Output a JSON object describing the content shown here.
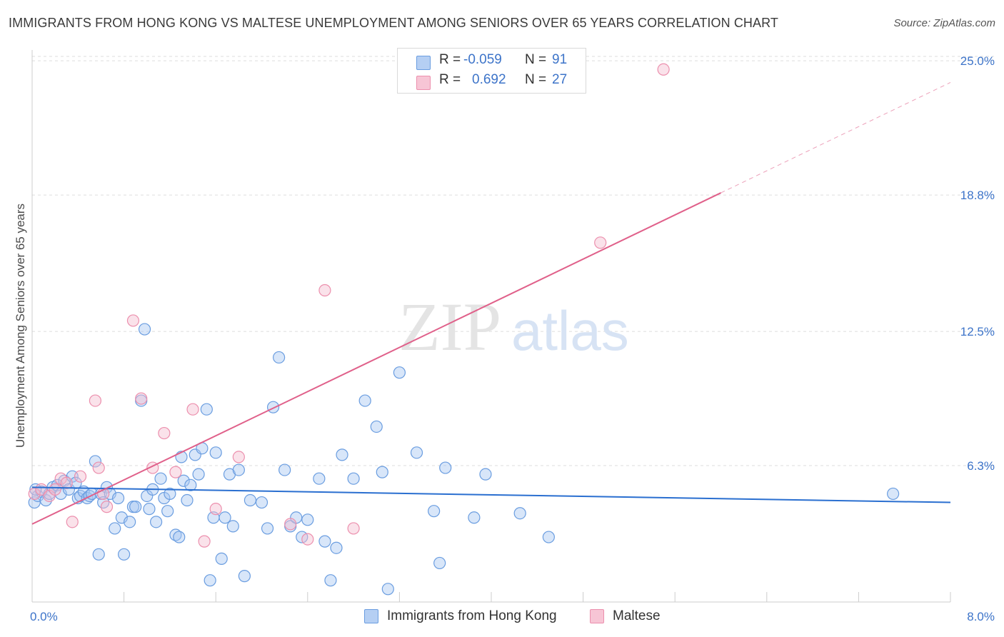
{
  "title": "IMMIGRANTS FROM HONG KONG VS MALTESE UNEMPLOYMENT AMONG SENIORS OVER 65 YEARS CORRELATION CHART",
  "source": "Source: ZipAtlas.com",
  "watermark": {
    "zip": "ZIP",
    "atlas": "atlas"
  },
  "legend": {
    "rows": [
      {
        "r_label": "R =",
        "r_value": "-0.059",
        "n_label": "N =",
        "n_value": "91"
      },
      {
        "r_label": "R =",
        "r_value": "0.692",
        "n_label": "N =",
        "n_value": "27"
      }
    ]
  },
  "bottom_legend": {
    "series1": "Immigrants from Hong Kong",
    "series2": "Maltese"
  },
  "colors": {
    "blue_fill": "#a9c7f2",
    "blue_stroke": "#6a9de0",
    "blue_line": "#2a6fd0",
    "pink_fill": "#f5bfd0",
    "pink_stroke": "#ec8fad",
    "pink_line": "#e0608a",
    "tick_text": "#3d74c9"
  },
  "chart_data": {
    "type": "scatter",
    "title": "IMMIGRANTS FROM HONG KONG VS MALTESE UNEMPLOYMENT AMONG SENIORS OVER 65 YEARS CORRELATION CHART",
    "xlabel": "",
    "ylabel": "Unemployment Among Seniors over 65 years",
    "xlim": [
      0,
      8
    ],
    "ylim": [
      0,
      25.5
    ],
    "x_tick_labels": [
      "0.0%",
      "8.0%"
    ],
    "y_ticks": [
      6.3,
      12.5,
      18.8,
      25.0
    ],
    "y_tick_labels": [
      "6.3%",
      "12.5%",
      "18.8%",
      "25.0%"
    ],
    "grid": true,
    "legend_position": "top-center",
    "series": [
      {
        "name": "Immigrants from Hong Kong",
        "r": -0.059,
        "n": 91,
        "trend": {
          "x0": 0.0,
          "y0": 5.3,
          "x1": 8.0,
          "y1": 4.6
        },
        "points": [
          [
            0.02,
            4.6
          ],
          [
            0.05,
            4.9
          ],
          [
            0.08,
            5.1
          ],
          [
            0.12,
            4.7
          ],
          [
            0.15,
            5.0
          ],
          [
            0.18,
            5.3
          ],
          [
            0.22,
            5.4
          ],
          [
            0.25,
            5.0
          ],
          [
            0.28,
            5.6
          ],
          [
            0.32,
            5.2
          ],
          [
            0.35,
            5.8
          ],
          [
            0.38,
            5.5
          ],
          [
            0.4,
            4.8
          ],
          [
            0.42,
            4.9
          ],
          [
            0.45,
            5.1
          ],
          [
            0.48,
            4.8
          ],
          [
            0.5,
            4.9
          ],
          [
            0.52,
            5.0
          ],
          [
            0.55,
            6.5
          ],
          [
            0.58,
            2.2
          ],
          [
            0.6,
            5.0
          ],
          [
            0.62,
            4.6
          ],
          [
            0.65,
            5.3
          ],
          [
            0.68,
            5.0
          ],
          [
            0.72,
            3.4
          ],
          [
            0.75,
            4.8
          ],
          [
            0.78,
            3.9
          ],
          [
            0.8,
            2.2
          ],
          [
            0.85,
            3.7
          ],
          [
            0.88,
            4.4
          ],
          [
            0.9,
            4.4
          ],
          [
            0.95,
            9.3
          ],
          [
            0.98,
            12.6
          ],
          [
            1.0,
            4.9
          ],
          [
            1.02,
            4.3
          ],
          [
            1.05,
            5.2
          ],
          [
            1.08,
            3.7
          ],
          [
            1.12,
            5.7
          ],
          [
            1.15,
            4.8
          ],
          [
            1.18,
            4.2
          ],
          [
            1.2,
            5.0
          ],
          [
            1.25,
            3.1
          ],
          [
            1.28,
            3.0
          ],
          [
            1.3,
            6.7
          ],
          [
            1.32,
            5.6
          ],
          [
            1.35,
            4.7
          ],
          [
            1.38,
            5.4
          ],
          [
            1.42,
            6.8
          ],
          [
            1.45,
            5.9
          ],
          [
            1.48,
            7.1
          ],
          [
            1.52,
            8.9
          ],
          [
            1.55,
            1.0
          ],
          [
            1.58,
            3.9
          ],
          [
            1.6,
            6.9
          ],
          [
            1.65,
            2.0
          ],
          [
            1.68,
            3.9
          ],
          [
            1.72,
            5.9
          ],
          [
            1.75,
            3.5
          ],
          [
            1.8,
            6.1
          ],
          [
            1.85,
            1.2
          ],
          [
            1.9,
            4.7
          ],
          [
            2.0,
            4.6
          ],
          [
            2.05,
            3.4
          ],
          [
            2.1,
            9.0
          ],
          [
            2.15,
            11.3
          ],
          [
            2.2,
            6.1
          ],
          [
            2.25,
            3.5
          ],
          [
            2.3,
            3.9
          ],
          [
            2.35,
            3.0
          ],
          [
            2.4,
            3.8
          ],
          [
            2.5,
            5.7
          ],
          [
            2.55,
            2.8
          ],
          [
            2.6,
            1.0
          ],
          [
            2.65,
            2.5
          ],
          [
            2.7,
            6.8
          ],
          [
            2.8,
            5.7
          ],
          [
            2.9,
            9.3
          ],
          [
            3.0,
            8.1
          ],
          [
            3.05,
            6.0
          ],
          [
            3.1,
            0.6
          ],
          [
            3.2,
            10.6
          ],
          [
            3.35,
            6.9
          ],
          [
            3.5,
            4.2
          ],
          [
            3.55,
            1.8
          ],
          [
            3.6,
            6.2
          ],
          [
            3.85,
            3.9
          ],
          [
            3.95,
            5.9
          ],
          [
            4.25,
            4.1
          ],
          [
            4.5,
            3.0
          ],
          [
            7.5,
            5.0
          ],
          [
            0.03,
            5.2
          ]
        ]
      },
      {
        "name": "Maltese",
        "r": 0.692,
        "n": 27,
        "trend_solid": {
          "x0": 0.0,
          "y0": 3.6,
          "x1": 6.0,
          "y1": 18.9
        },
        "trend_dashed": {
          "x0": 6.0,
          "y0": 18.9,
          "x1": 8.0,
          "y1": 24.0
        },
        "points": [
          [
            0.02,
            5.0
          ],
          [
            0.08,
            5.2
          ],
          [
            0.15,
            4.9
          ],
          [
            0.2,
            5.2
          ],
          [
            0.25,
            5.7
          ],
          [
            0.3,
            5.5
          ],
          [
            0.35,
            3.7
          ],
          [
            0.42,
            5.8
          ],
          [
            0.55,
            9.3
          ],
          [
            0.58,
            6.2
          ],
          [
            0.62,
            5.0
          ],
          [
            0.65,
            4.4
          ],
          [
            0.88,
            13.0
          ],
          [
            0.95,
            9.4
          ],
          [
            1.05,
            6.2
          ],
          [
            1.15,
            7.8
          ],
          [
            1.25,
            6.0
          ],
          [
            1.4,
            8.9
          ],
          [
            1.5,
            2.8
          ],
          [
            1.6,
            4.3
          ],
          [
            1.8,
            6.7
          ],
          [
            2.25,
            3.6
          ],
          [
            2.4,
            2.9
          ],
          [
            2.55,
            14.4
          ],
          [
            2.8,
            3.4
          ],
          [
            4.95,
            16.6
          ],
          [
            5.5,
            24.6
          ]
        ]
      }
    ]
  }
}
